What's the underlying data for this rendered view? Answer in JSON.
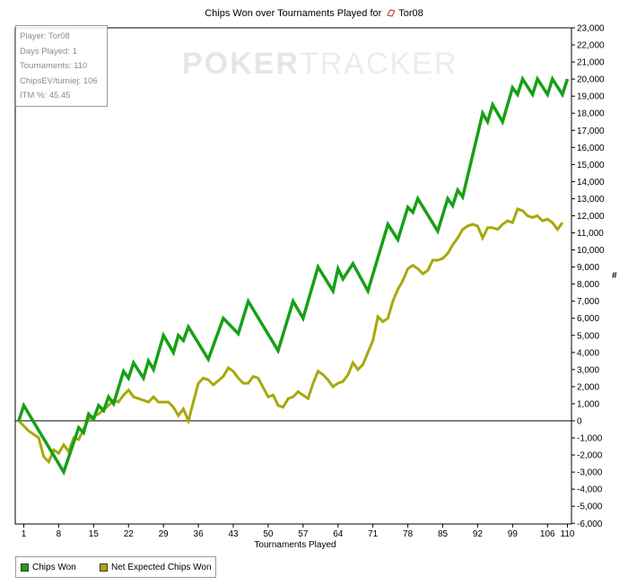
{
  "chart_data": {
    "type": "line",
    "title": "Chips Won over Tournaments Played for",
    "player_name": "Tor08",
    "xlabel": "Tournaments Played",
    "ylabel": "#",
    "x_ticks": [
      1,
      8,
      15,
      22,
      29,
      36,
      43,
      50,
      57,
      64,
      71,
      78,
      85,
      92,
      99,
      106,
      110
    ],
    "y_ticks": [
      23000,
      22000,
      21000,
      20000,
      19000,
      18000,
      17000,
      16000,
      15000,
      14000,
      13000,
      12000,
      11000,
      10000,
      9000,
      8000,
      7000,
      6000,
      5000,
      4000,
      3000,
      2000,
      1000,
      0,
      -1000,
      -2000,
      -3000,
      -4000,
      -5000,
      -6000
    ],
    "y_tick_labels": [
      "23,000",
      "22,000",
      "21,000",
      "20,000",
      "19,000",
      "18,000",
      "17,000",
      "16,000",
      "15,000",
      "14,000",
      "13,000",
      "12,000",
      "11,000",
      "10,000",
      "9,000",
      "8,000",
      "7,000",
      "6,000",
      "5,000",
      "4,000",
      "3,000",
      "2,000",
      "1,000",
      "0",
      "-1,000",
      "-2,000",
      "-3,000",
      "-4,000",
      "-5,000",
      "-6,000"
    ],
    "xlim": [
      0,
      111
    ],
    "ylim": [
      -6000,
      23000
    ],
    "grid": false,
    "legend_position": "bottom-left",
    "series": [
      {
        "name": "Chips Won",
        "color": "#17a017",
        "points": [
          [
            0,
            0
          ],
          [
            1,
            900
          ],
          [
            9,
            -3000
          ],
          [
            12,
            -400
          ],
          [
            13,
            -700
          ],
          [
            14,
            400
          ],
          [
            15,
            100
          ],
          [
            16,
            900
          ],
          [
            17,
            600
          ],
          [
            18,
            1400
          ],
          [
            19,
            1000
          ],
          [
            21,
            2900
          ],
          [
            22,
            2500
          ],
          [
            23,
            3400
          ],
          [
            25,
            2500
          ],
          [
            26,
            3500
          ],
          [
            27,
            3000
          ],
          [
            29,
            5000
          ],
          [
            31,
            4000
          ],
          [
            32,
            5000
          ],
          [
            33,
            4700
          ],
          [
            34,
            5500
          ],
          [
            38,
            3600
          ],
          [
            41,
            6000
          ],
          [
            44,
            5100
          ],
          [
            46,
            7000
          ],
          [
            52,
            4100
          ],
          [
            55,
            7000
          ],
          [
            57,
            6000
          ],
          [
            60,
            9000
          ],
          [
            63,
            7600
          ],
          [
            64,
            8900
          ],
          [
            65,
            8300
          ],
          [
            67,
            9200
          ],
          [
            70,
            7600
          ],
          [
            74,
            11500
          ],
          [
            76,
            10600
          ],
          [
            78,
            12500
          ],
          [
            79,
            12200
          ],
          [
            80,
            13000
          ],
          [
            84,
            11100
          ],
          [
            86,
            13000
          ],
          [
            87,
            12600
          ],
          [
            88,
            13500
          ],
          [
            89,
            13100
          ],
          [
            93,
            18000
          ],
          [
            94,
            17500
          ],
          [
            95,
            18500
          ],
          [
            97,
            17500
          ],
          [
            99,
            19500
          ],
          [
            100,
            19100
          ],
          [
            101,
            20000
          ],
          [
            103,
            19100
          ],
          [
            104,
            20000
          ],
          [
            106,
            19100
          ],
          [
            107,
            20000
          ],
          [
            109,
            19100
          ],
          [
            110,
            20000
          ]
        ]
      },
      {
        "name": "Net Expected Chips Won",
        "color": "#a8a80c",
        "points": [
          [
            0,
            0
          ],
          [
            2,
            -600
          ],
          [
            4,
            -1000
          ],
          [
            5,
            -2100
          ],
          [
            6,
            -2400
          ],
          [
            7,
            -1700
          ],
          [
            8,
            -1900
          ],
          [
            9,
            -1400
          ],
          [
            10,
            -1800
          ],
          [
            11,
            -1000
          ],
          [
            12,
            -1100
          ],
          [
            13,
            -500
          ],
          [
            14,
            100
          ],
          [
            16,
            400
          ],
          [
            18,
            900
          ],
          [
            19,
            1200
          ],
          [
            20,
            1100
          ],
          [
            21,
            1500
          ],
          [
            22,
            1800
          ],
          [
            23,
            1400
          ],
          [
            24,
            1300
          ],
          [
            26,
            1100
          ],
          [
            27,
            1400
          ],
          [
            28,
            1100
          ],
          [
            30,
            1100
          ],
          [
            31,
            800
          ],
          [
            32,
            300
          ],
          [
            33,
            700
          ],
          [
            34,
            0
          ],
          [
            35,
            1100
          ],
          [
            36,
            2200
          ],
          [
            37,
            2500
          ],
          [
            38,
            2400
          ],
          [
            39,
            2100
          ],
          [
            41,
            2600
          ],
          [
            42,
            3100
          ],
          [
            43,
            2900
          ],
          [
            44,
            2500
          ],
          [
            45,
            2200
          ],
          [
            46,
            2200
          ],
          [
            47,
            2600
          ],
          [
            48,
            2500
          ],
          [
            50,
            1400
          ],
          [
            51,
            1500
          ],
          [
            52,
            900
          ],
          [
            53,
            800
          ],
          [
            54,
            1300
          ],
          [
            55,
            1400
          ],
          [
            56,
            1700
          ],
          [
            57,
            1500
          ],
          [
            58,
            1300
          ],
          [
            59,
            2200
          ],
          [
            60,
            2900
          ],
          [
            61,
            2700
          ],
          [
            62,
            2400
          ],
          [
            63,
            2000
          ],
          [
            64,
            2200
          ],
          [
            65,
            2300
          ],
          [
            66,
            2700
          ],
          [
            67,
            3400
          ],
          [
            68,
            3000
          ],
          [
            69,
            3300
          ],
          [
            70,
            4000
          ],
          [
            71,
            4700
          ],
          [
            72,
            6100
          ],
          [
            73,
            5800
          ],
          [
            74,
            6000
          ],
          [
            75,
            7000
          ],
          [
            76,
            7700
          ],
          [
            77,
            8200
          ],
          [
            78,
            8900
          ],
          [
            79,
            9100
          ],
          [
            80,
            8900
          ],
          [
            81,
            8600
          ],
          [
            82,
            8800
          ],
          [
            83,
            9400
          ],
          [
            84,
            9400
          ],
          [
            85,
            9500
          ],
          [
            86,
            9800
          ],
          [
            87,
            10300
          ],
          [
            88,
            10700
          ],
          [
            89,
            11200
          ],
          [
            90,
            11400
          ],
          [
            91,
            11500
          ],
          [
            92,
            11400
          ],
          [
            93,
            10700
          ],
          [
            94,
            11300
          ],
          [
            95,
            11300
          ],
          [
            96,
            11200
          ],
          [
            97,
            11500
          ],
          [
            98,
            11700
          ],
          [
            99,
            11600
          ],
          [
            100,
            12400
          ],
          [
            101,
            12300
          ],
          [
            102,
            12000
          ],
          [
            103,
            11900
          ],
          [
            104,
            12000
          ],
          [
            105,
            11700
          ],
          [
            106,
            11800
          ],
          [
            107,
            11600
          ],
          [
            108,
            11200
          ],
          [
            109,
            11600
          ]
        ]
      }
    ]
  },
  "stats_box": {
    "player": "Player: Tor08",
    "days_played": "Days Played: 1",
    "tournaments": "Tournaments: 110",
    "chipsev": "ChipsEV/turniej: 106",
    "itm": "ITM %: 45.45"
  },
  "watermark": {
    "part1": "POKER",
    "part2": "TRACKER"
  },
  "legend": {
    "item1": "Chips Won",
    "item2": "Net Expected Chips Won"
  },
  "player_icon": "poker-chip-icon",
  "colors": {
    "chips_won": "#17a017",
    "net_expected": "#a8a80c",
    "axis": "#000000"
  }
}
